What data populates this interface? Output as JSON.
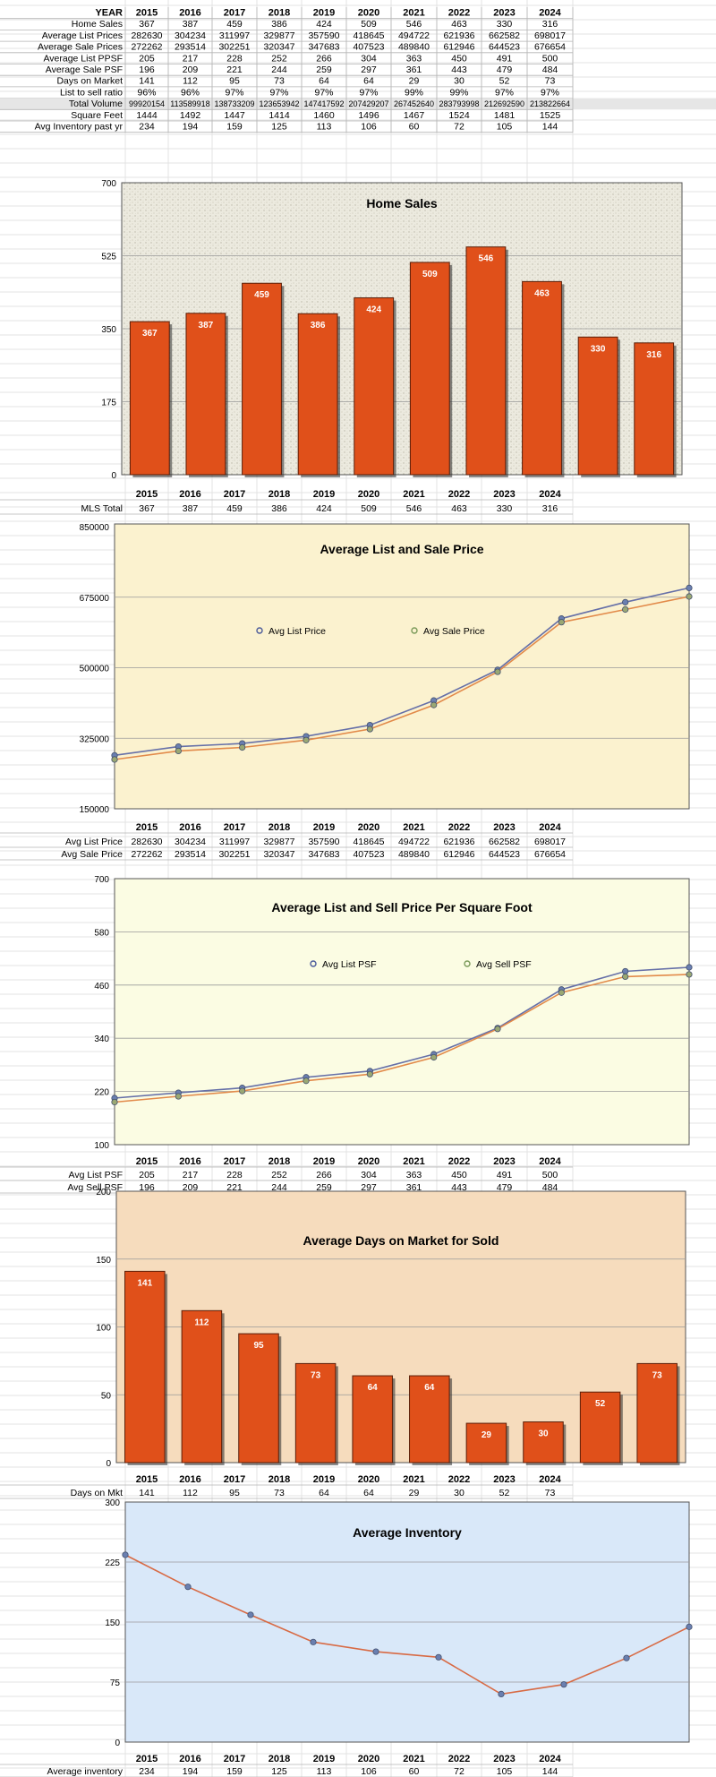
{
  "colors": {
    "bar": "#e0501a",
    "bar_edge": "#5a1e08",
    "list_line": "#6670a8",
    "sale_line": "#e28a4a",
    "inventory_line": "#d86a44",
    "point": "#6a7fb0"
  },
  "summary_table": {
    "header_label": "YEAR",
    "years": [
      "2015",
      "2016",
      "2017",
      "2018",
      "2019",
      "2020",
      "2021",
      "2022",
      "2023",
      "2024"
    ],
    "rows": [
      {
        "label": "Home Sales",
        "values": [
          "367",
          "387",
          "459",
          "386",
          "424",
          "509",
          "546",
          "463",
          "330",
          "316"
        ]
      },
      {
        "label": "Average List Prices",
        "values": [
          "282630",
          "304234",
          "311997",
          "329877",
          "357590",
          "418645",
          "494722",
          "621936",
          "662582",
          "698017"
        ]
      },
      {
        "label": "Average Sale Prices",
        "values": [
          "272262",
          "293514",
          "302251",
          "320347",
          "347683",
          "407523",
          "489840",
          "612946",
          "644523",
          "676654"
        ]
      },
      {
        "label": "Average List PPSF",
        "values": [
          "205",
          "217",
          "228",
          "252",
          "266",
          "304",
          "363",
          "450",
          "491",
          "500"
        ]
      },
      {
        "label": "Average Sale PSF",
        "values": [
          "196",
          "209",
          "221",
          "244",
          "259",
          "297",
          "361",
          "443",
          "479",
          "484"
        ]
      },
      {
        "label": "Days on Market",
        "values": [
          "141",
          "112",
          "95",
          "73",
          "64",
          "64",
          "29",
          "30",
          "52",
          "73"
        ]
      },
      {
        "label": "List to sell ratio",
        "values": [
          "96%",
          "96%",
          "97%",
          "97%",
          "97%",
          "97%",
          "99%",
          "99%",
          "97%",
          "97%"
        ]
      },
      {
        "label": "Total Volume",
        "values": [
          "99920154",
          "113589918",
          "138733209",
          "123653942",
          "147417592",
          "207429207",
          "267452640",
          "283793998",
          "212692590",
          "213822664"
        ]
      },
      {
        "label": "Square Feet",
        "values": [
          "1444",
          "1492",
          "1447",
          "1414",
          "1460",
          "1496",
          "1467",
          "1524",
          "1481",
          "1525"
        ]
      },
      {
        "label": "Avg Inventory past yr",
        "values": [
          "234",
          "194",
          "159",
          "125",
          "113",
          "106",
          "60",
          "72",
          "105",
          "144"
        ]
      }
    ]
  },
  "chart_data": [
    {
      "type": "bar",
      "title": "Home Sales",
      "categories": [
        "2015",
        "2016",
        "2017",
        "2018",
        "2019",
        "2020",
        "2021",
        "2022",
        "2023",
        "2024"
      ],
      "values": [
        367,
        387,
        459,
        386,
        424,
        509,
        546,
        463,
        330,
        316
      ],
      "ylim": [
        0,
        700
      ],
      "yticks": [
        "0",
        "175",
        "350",
        "525",
        "700"
      ],
      "grid": true,
      "table_rows": [
        {
          "label": "MLS Total",
          "values": [
            "367",
            "387",
            "459",
            "386",
            "424",
            "509",
            "546",
            "463",
            "330",
            "316"
          ]
        }
      ]
    },
    {
      "type": "line",
      "title": "Average List and Sale Price",
      "categories": [
        "2015",
        "2016",
        "2017",
        "2018",
        "2019",
        "2020",
        "2021",
        "2022",
        "2023",
        "2024"
      ],
      "series": [
        {
          "name": "Avg List Price",
          "values": [
            282630,
            304234,
            311997,
            329877,
            357590,
            418645,
            494722,
            621936,
            662582,
            698017
          ]
        },
        {
          "name": "Avg Sale Price",
          "values": [
            272262,
            293514,
            302251,
            320347,
            347683,
            407523,
            489840,
            612946,
            644523,
            676654
          ]
        }
      ],
      "ylim": [
        150000,
        850000
      ],
      "yticks": [
        "150000",
        "325000",
        "500000",
        "675000",
        "850000"
      ],
      "grid": true,
      "legend": "top-center",
      "table_rows": [
        {
          "label": "Avg List Price",
          "values": [
            "282630",
            "304234",
            "311997",
            "329877",
            "357590",
            "418645",
            "494722",
            "621936",
            "662582",
            "698017"
          ]
        },
        {
          "label": "Avg Sale Price",
          "values": [
            "272262",
            "293514",
            "302251",
            "320347",
            "347683",
            "407523",
            "489840",
            "612946",
            "644523",
            "676654"
          ]
        }
      ]
    },
    {
      "type": "line",
      "title": "Average List and Sell Price Per Square Foot",
      "categories": [
        "2015",
        "2016",
        "2017",
        "2018",
        "2019",
        "2020",
        "2021",
        "2022",
        "2023",
        "2024"
      ],
      "series": [
        {
          "name": "Avg List PSF",
          "values": [
            205,
            217,
            228,
            252,
            266,
            304,
            363,
            450,
            491,
            500
          ]
        },
        {
          "name": "Avg Sell PSF",
          "values": [
            196,
            209,
            221,
            244,
            259,
            297,
            361,
            443,
            479,
            484
          ]
        }
      ],
      "ylim": [
        100,
        700
      ],
      "yticks": [
        "100",
        "220",
        "340",
        "460",
        "580",
        "700"
      ],
      "grid": true,
      "legend": "top-center",
      "table_rows": [
        {
          "label": "Avg List PSF",
          "values": [
            "205",
            "217",
            "228",
            "252",
            "266",
            "304",
            "363",
            "450",
            "491",
            "500"
          ]
        },
        {
          "label": "Avg Sell PSF",
          "values": [
            "196",
            "209",
            "221",
            "244",
            "259",
            "297",
            "361",
            "443",
            "479",
            "484"
          ]
        }
      ]
    },
    {
      "type": "bar",
      "title": "Average Days on Market for Sold",
      "categories": [
        "2015",
        "2016",
        "2017",
        "2018",
        "2019",
        "2020",
        "2021",
        "2022",
        "2023",
        "2024"
      ],
      "values": [
        141,
        112,
        95,
        73,
        64,
        64,
        29,
        30,
        52,
        73
      ],
      "ylim": [
        0,
        200
      ],
      "yticks": [
        "0",
        "50",
        "100",
        "150",
        "200"
      ],
      "grid": true,
      "table_rows": [
        {
          "label": "Days on Mkt",
          "values": [
            "141",
            "112",
            "95",
            "73",
            "64",
            "64",
            "29",
            "30",
            "52",
            "73"
          ]
        }
      ]
    },
    {
      "type": "line",
      "title": "Average Inventory",
      "categories": [
        "2015",
        "2016",
        "2017",
        "2018",
        "2019",
        "2020",
        "2021",
        "2022",
        "2023",
        "2024"
      ],
      "series": [
        {
          "values": [
            234,
            194,
            159,
            125,
            113,
            106,
            60,
            72,
            105,
            144
          ]
        }
      ],
      "ylim": [
        0,
        300
      ],
      "yticks": [
        "0",
        "75",
        "150",
        "225",
        "300"
      ],
      "grid": true,
      "table_rows": [
        {
          "label": "Average inventory",
          "values": [
            "234",
            "194",
            "159",
            "125",
            "113",
            "106",
            "60",
            "72",
            "105",
            "144"
          ]
        }
      ]
    }
  ]
}
